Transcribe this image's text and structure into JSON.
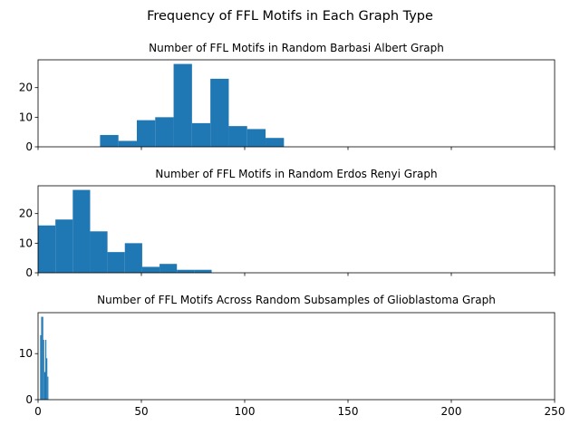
{
  "figure": {
    "title": "Frequency of FFL Motifs in Each Graph Type"
  },
  "chart_data": [
    {
      "type": "bar",
      "title": "Number of FFL Motifs in Random Barbasi Albert Graph",
      "xlabel": "",
      "ylabel": "",
      "xlim": [
        0,
        250
      ],
      "ylim": [
        0,
        29.4
      ],
      "yticks": [
        0,
        10,
        20
      ],
      "bins": [
        {
          "x0": 30.0,
          "x1": 38.9,
          "value": 4
        },
        {
          "x0": 38.9,
          "x1": 47.8,
          "value": 2
        },
        {
          "x0": 47.8,
          "x1": 56.7,
          "value": 9
        },
        {
          "x0": 56.7,
          "x1": 65.6,
          "value": 10
        },
        {
          "x0": 65.6,
          "x1": 74.5,
          "value": 28
        },
        {
          "x0": 74.5,
          "x1": 83.4,
          "value": 8
        },
        {
          "x0": 83.4,
          "x1": 92.3,
          "value": 23
        },
        {
          "x0": 92.3,
          "x1": 101.2,
          "value": 7
        },
        {
          "x0": 101.2,
          "x1": 110.1,
          "value": 6
        },
        {
          "x0": 110.1,
          "x1": 119.0,
          "value": 3
        }
      ]
    },
    {
      "type": "bar",
      "title": "Number of FFL Motifs in Random Erdos Renyi Graph",
      "xlabel": "",
      "ylabel": "",
      "xlim": [
        0,
        250
      ],
      "ylim": [
        0,
        29.4
      ],
      "yticks": [
        0,
        10,
        20
      ],
      "bins": [
        {
          "x0": 0.0,
          "x1": 8.4,
          "value": 16
        },
        {
          "x0": 8.4,
          "x1": 16.8,
          "value": 18
        },
        {
          "x0": 16.8,
          "x1": 25.2,
          "value": 28
        },
        {
          "x0": 25.2,
          "x1": 33.6,
          "value": 14
        },
        {
          "x0": 33.6,
          "x1": 42.0,
          "value": 7
        },
        {
          "x0": 42.0,
          "x1": 50.4,
          "value": 10
        },
        {
          "x0": 50.4,
          "x1": 58.8,
          "value": 2
        },
        {
          "x0": 58.8,
          "x1": 67.2,
          "value": 3
        },
        {
          "x0": 67.2,
          "x1": 75.6,
          "value": 1
        },
        {
          "x0": 75.6,
          "x1": 84.0,
          "value": 1
        }
      ]
    },
    {
      "type": "bar",
      "title": "Number of FFL Motifs Across Random Subsamples of Glioblastoma Graph",
      "xlabel": "",
      "ylabel": "",
      "xlim": [
        0,
        250
      ],
      "ylim": [
        0,
        18.9
      ],
      "yticks": [
        0,
        10
      ],
      "xticks": [
        0,
        50,
        100,
        150,
        200,
        250
      ],
      "bins": [
        {
          "x0": 1.0,
          "x1": 1.5,
          "value": 14
        },
        {
          "x0": 1.5,
          "x1": 2.0,
          "value": 18
        },
        {
          "x0": 2.0,
          "x1": 2.5,
          "value": 18
        },
        {
          "x0": 2.5,
          "x1": 3.0,
          "value": 13
        },
        {
          "x0": 3.0,
          "x1": 3.5,
          "value": 6
        },
        {
          "x0": 3.5,
          "x1": 4.0,
          "value": 13
        },
        {
          "x0": 4.0,
          "x1": 4.5,
          "value": 9
        },
        {
          "x0": 4.5,
          "x1": 5.0,
          "value": 5
        }
      ]
    }
  ],
  "colors": {
    "bar": "#1f77b4"
  }
}
